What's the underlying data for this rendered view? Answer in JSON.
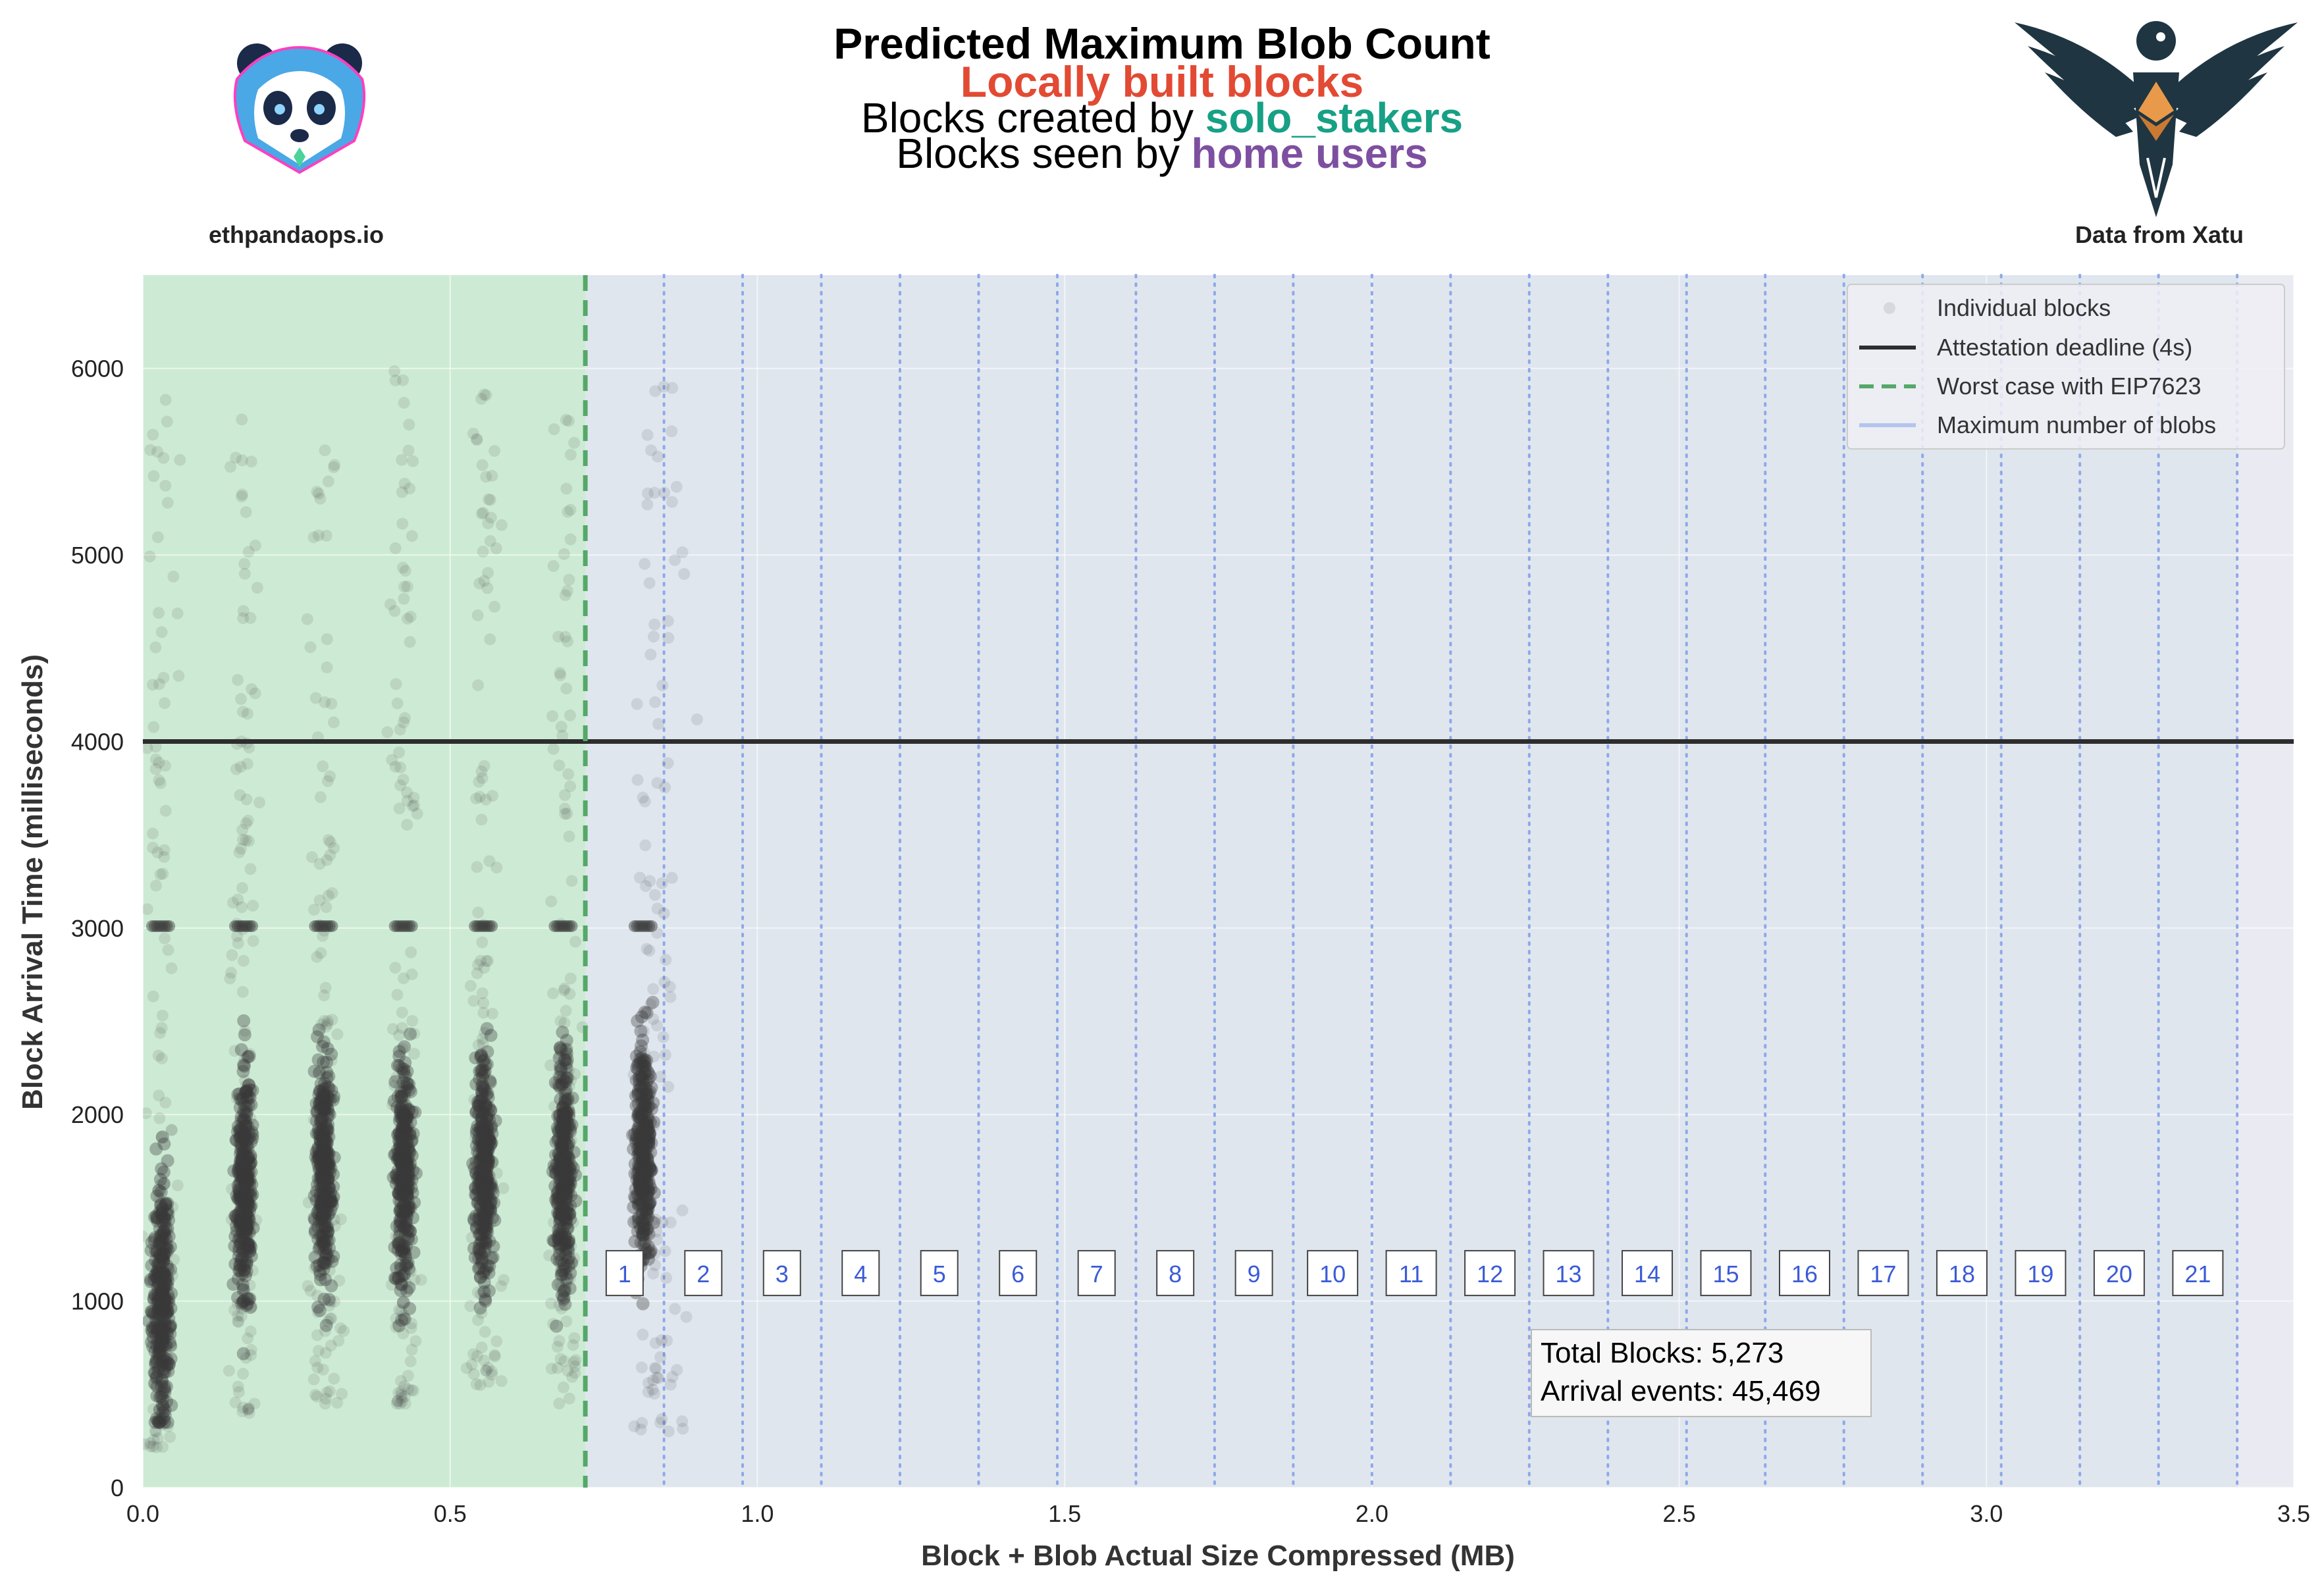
{
  "header": {
    "title": "Predicted Maximum Blob Count",
    "subtitle_1": "Locally built blocks",
    "subtitle_2_prefix": "Blocks created by ",
    "subtitle_2_highlight": "solo_stakers",
    "subtitle_3_prefix": "Blocks seen by ",
    "subtitle_3_highlight": "home users",
    "left_caption": "ethpandaops.io",
    "right_caption": "Data from Xatu"
  },
  "colors": {
    "subtitle_1": "#e24a33",
    "solo_stakers": "#17a085",
    "home_users": "#7d4fa0",
    "plot_bg": "#eaeaf2",
    "green_region": "#cdebd4",
    "blue_region": "#dfe6ee",
    "points": "#3a3a3a",
    "deadline": "#2d2d2d",
    "eip_line": "#55a868",
    "blob_lines": "#8fa9e8",
    "blob_text": "#3b5bd6"
  },
  "icons": {
    "left_logo": "panda-logo-icon",
    "right_logo": "eagle-logo-icon"
  },
  "chart_data": {
    "type": "scatter",
    "xlabel": "Block + Blob Actual Size Compressed (MB)",
    "ylabel": "Block Arrival Time (milliseconds)",
    "xlim": [
      0,
      3.5
    ],
    "ylim": [
      0,
      6500
    ],
    "x_ticks": [
      "0.0",
      "0.5",
      "1.0",
      "1.5",
      "2.0",
      "2.5",
      "3.0",
      "3.5"
    ],
    "y_ticks": [
      "0",
      "1000",
      "2000",
      "3000",
      "4000",
      "5000",
      "6000"
    ],
    "grid": true,
    "legend_position": "top-right",
    "legend": [
      {
        "label": "Individual blocks",
        "kind": "point"
      },
      {
        "label": "Attestation deadline (4s)",
        "kind": "solid"
      },
      {
        "label": "Worst case with EIP7623",
        "kind": "dashed"
      },
      {
        "label": "Maximum number of blobs",
        "kind": "line"
      }
    ],
    "attestation_deadline_ms": 4000,
    "eip7623_worst_case_mb": 0.72,
    "blob_count_lines": {
      "labels": [
        "1",
        "2",
        "3",
        "4",
        "5",
        "6",
        "7",
        "8",
        "9",
        "10",
        "11",
        "12",
        "13",
        "14",
        "15",
        "16",
        "17",
        "18",
        "19",
        "20",
        "21"
      ],
      "x_mb": [
        0.72,
        0.848,
        0.976,
        1.104,
        1.232,
        1.36,
        1.488,
        1.616,
        1.744,
        1.872,
        2.0,
        2.128,
        2.256,
        2.384,
        2.512,
        2.64,
        2.768,
        2.896,
        3.024,
        3.152,
        3.28,
        3.408
      ],
      "label_y_ms": 1150
    },
    "point_clusters": [
      {
        "x_mb": 0.03,
        "median_ms": 1000,
        "min_ms": 200,
        "max_ms": 6000
      },
      {
        "x_mb": 0.165,
        "median_ms": 1600,
        "min_ms": 400,
        "max_ms": 5800
      },
      {
        "x_mb": 0.295,
        "median_ms": 1700,
        "min_ms": 450,
        "max_ms": 5700
      },
      {
        "x_mb": 0.425,
        "median_ms": 1700,
        "min_ms": 450,
        "max_ms": 6000
      },
      {
        "x_mb": 0.555,
        "median_ms": 1700,
        "min_ms": 550,
        "max_ms": 6000
      },
      {
        "x_mb": 0.685,
        "median_ms": 1700,
        "min_ms": 450,
        "max_ms": 5900
      },
      {
        "x_mb": 0.815,
        "median_ms": 1800,
        "min_ms": 300,
        "max_ms": 5950
      }
    ],
    "annotation": [
      "Total Blocks: 5,273",
      "Arrival events: 45,469"
    ]
  }
}
